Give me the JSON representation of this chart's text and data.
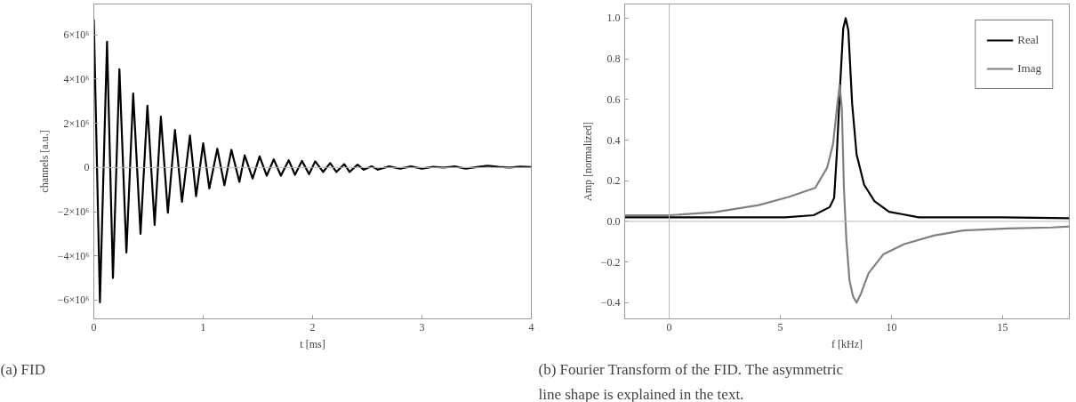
{
  "chart_data": [
    {
      "type": "line",
      "xlabel": "t [ms]",
      "ylabel": "channels [a.u.]",
      "xlim": [
        0,
        4
      ],
      "ylim": [
        -6850000,
        7400000
      ],
      "xticks": [
        0,
        1,
        2,
        3,
        4
      ],
      "yticks": [
        {
          "value": -6000000,
          "label": "−6×10⁶"
        },
        {
          "value": -4000000,
          "label": "−4×10⁶"
        },
        {
          "value": -2000000,
          "label": "−2×10⁶"
        },
        0,
        {
          "value": 2000000,
          "label": "2×10⁶"
        },
        {
          "value": 4000000,
          "label": "4×10⁶"
        },
        {
          "value": 6000000,
          "label": "6×10⁶"
        }
      ],
      "grid": false,
      "legend": false,
      "line_style": "solid",
      "ref_lines": [
        {
          "axis": "y",
          "value": 0,
          "color": "#bbbbbb"
        }
      ],
      "annotations": [
        "(a) FID"
      ],
      "series": [
        {
          "color": "#000000",
          "x": [
            0,
            0.056,
            0.121,
            0.175,
            0.234,
            0.298,
            0.36,
            0.427,
            0.49,
            0.556,
            0.613,
            0.677,
            0.742,
            0.806,
            0.879,
            0.935,
            1.0,
            1.056,
            1.129,
            1.194,
            1.258,
            1.331,
            1.379,
            1.452,
            1.516,
            1.581,
            1.645,
            1.71,
            1.782,
            1.839,
            1.903,
            1.968,
            2.024,
            2.097,
            2.161,
            2.218,
            2.29,
            2.339,
            2.411,
            2.468,
            2.54,
            2.597,
            2.7,
            2.8,
            2.9,
            3.0,
            3.1,
            3.2,
            3.3,
            3.4,
            3.5,
            3.6,
            3.7,
            3.8,
            3.9,
            4.0
          ],
          "values": [
            6700000,
            -6100000,
            5700000,
            -5000000,
            4450000,
            -3850000,
            3350000,
            -3000000,
            2800000,
            -2600000,
            2300000,
            -2050000,
            1700000,
            -1550000,
            1450000,
            -1300000,
            1100000,
            -950000,
            850000,
            -800000,
            800000,
            -650000,
            550000,
            -500000,
            500000,
            -370000,
            370000,
            -370000,
            330000,
            -330000,
            300000,
            -300000,
            280000,
            -200000,
            200000,
            -200000,
            150000,
            -200000,
            130000,
            -100000,
            50000,
            -100000,
            50000,
            -50000,
            50000,
            -50000,
            30000,
            0,
            50000,
            -50000,
            20000,
            80000,
            30000,
            0,
            40000,
            20000
          ]
        }
      ]
    },
    {
      "type": "line",
      "xlabel": "f [kHz]",
      "ylabel": "Amp [normalized]",
      "xlim": [
        -2,
        18
      ],
      "ylim": [
        -0.48,
        1.07
      ],
      "xticks": [
        0,
        5,
        10,
        15
      ],
      "yticks": [
        {
          "value": -0.4,
          "label": "−0.4"
        },
        {
          "value": -0.2,
          "label": "−0.2"
        },
        {
          "value": 0,
          "label": "0.0"
        },
        0.2,
        0.4,
        0.6,
        0.8,
        {
          "value": 1,
          "label": "1.0"
        }
      ],
      "grid": false,
      "legend": "top right",
      "line_style": "solid",
      "ref_lines": [
        {
          "axis": "x",
          "value": 0,
          "color": "#bbbbbb"
        },
        {
          "axis": "y",
          "value": 0,
          "color": "#bbbbbb"
        }
      ],
      "annotations": [
        "(b) Fourier Transform of the FID. The asymmetric line shape is explained in the text."
      ],
      "series": [
        {
          "name": "Real",
          "color": "#000000",
          "x": [
            -2,
            0,
            2,
            4,
            5.22,
            6.5,
            7.22,
            7.42,
            7.54,
            7.69,
            7.83,
            7.94,
            8.06,
            8.23,
            8.43,
            8.77,
            9.23,
            9.89,
            11.23,
            13,
            15,
            18
          ],
          "values": [
            0.02,
            0.02,
            0.02,
            0.02,
            0.02,
            0.03,
            0.07,
            0.115,
            0.33,
            0.67,
            0.95,
            1.0,
            0.94,
            0.58,
            0.33,
            0.18,
            0.1,
            0.047,
            0.02,
            0.02,
            0.02,
            0.015
          ]
        },
        {
          "name": "Imag",
          "color": "#808080",
          "x": [
            -2,
            0,
            2.03,
            4.03,
            5.37,
            6.57,
            7.11,
            7.37,
            7.57,
            7.67,
            7.77,
            7.86,
            7.97,
            8.11,
            8.27,
            8.43,
            8.63,
            8.97,
            9.63,
            10.57,
            11.9,
            13.23,
            15.23,
            17.22,
            18
          ],
          "values": [
            0.03,
            0.03,
            0.045,
            0.08,
            0.12,
            0.165,
            0.265,
            0.38,
            0.58,
            0.67,
            0.55,
            0.165,
            -0.09,
            -0.29,
            -0.37,
            -0.4,
            -0.355,
            -0.255,
            -0.163,
            -0.112,
            -0.07,
            -0.045,
            -0.035,
            -0.03,
            -0.025
          ]
        }
      ]
    }
  ]
}
